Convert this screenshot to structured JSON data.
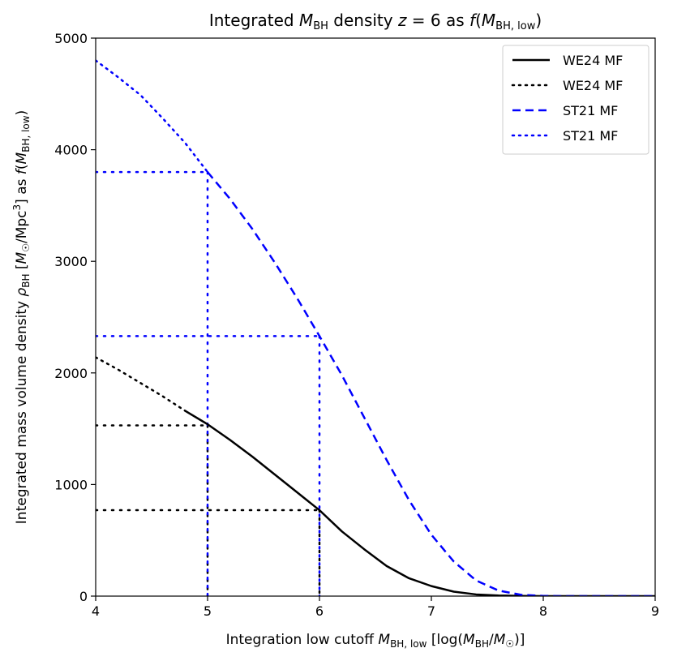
{
  "chart_data": {
    "type": "line",
    "title": "Integrated M_BH density z = 6 as f(M_BH,low)",
    "xlabel": "Integration low cutoff M_BH,low [log(M_BH/M☉)]",
    "ylabel": "Integrated mass volume density ρ_BH [M☉/Mpc³] as f(M_BH,low)",
    "xlim": [
      4,
      9
    ],
    "ylim": [
      0,
      5000
    ],
    "xticks": [
      "4",
      "5",
      "6",
      "7",
      "8",
      "9"
    ],
    "yticks": [
      "0",
      "1000",
      "2000",
      "3000",
      "4000",
      "5000"
    ],
    "grid": false,
    "legend_position": "top-right",
    "series": [
      {
        "name": "WE24 MF",
        "style": "solid",
        "color": "#000000",
        "x": [
          4.8,
          5.0,
          5.2,
          5.4,
          5.6,
          5.8,
          6.0,
          6.2,
          6.4,
          6.6,
          6.8,
          7.0,
          7.2,
          7.4,
          7.6,
          7.8,
          8.0,
          8.5,
          9.0
        ],
        "y": [
          1660,
          1540,
          1400,
          1250,
          1090,
          930,
          770,
          580,
          420,
          270,
          160,
          90,
          40,
          15,
          5,
          2,
          0,
          0,
          0
        ]
      },
      {
        "name": "WE24 MF",
        "style": "dotted",
        "color": "#000000",
        "x": [
          4.0,
          4.2,
          4.4,
          4.6,
          4.8
        ],
        "y": [
          2140,
          2030,
          1910,
          1790,
          1660
        ]
      },
      {
        "name": "ST21 MF",
        "style": "dashed",
        "color": "#0000ff",
        "x": [
          5.0,
          5.2,
          5.4,
          5.6,
          5.8,
          6.0,
          6.2,
          6.4,
          6.6,
          6.8,
          7.0,
          7.2,
          7.4,
          7.6,
          7.8,
          8.0,
          8.2,
          8.5,
          9.0
        ],
        "y": [
          3800,
          3560,
          3290,
          2990,
          2670,
          2330,
          1980,
          1600,
          1220,
          860,
          550,
          310,
          140,
          50,
          12,
          2,
          0,
          0,
          0
        ]
      },
      {
        "name": "ST21 MF",
        "style": "dotted",
        "color": "#0000ff",
        "x": [
          4.0,
          4.2,
          4.4,
          4.6,
          4.8,
          5.0
        ],
        "y": [
          4800,
          4650,
          4490,
          4280,
          4060,
          3800
        ]
      }
    ],
    "reference_lines": [
      {
        "color": "#000000",
        "x": 5,
        "y": 1530
      },
      {
        "color": "#000000",
        "x": 6,
        "y": 770
      },
      {
        "color": "#0000ff",
        "x": 5,
        "y": 3800
      },
      {
        "color": "#0000ff",
        "x": 6,
        "y": 2330
      }
    ]
  }
}
